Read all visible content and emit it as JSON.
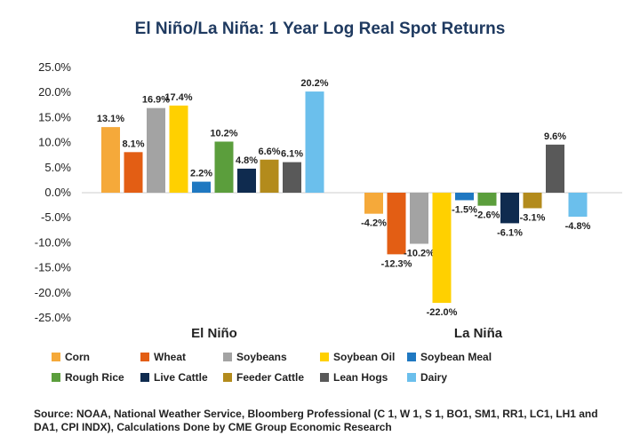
{
  "chart_data": {
    "type": "bar",
    "title": "El Niño/La Niña: 1 Year Log Real Spot Returns",
    "categories": [
      "El Niño",
      "La Niña"
    ],
    "ylim": [
      -25,
      25
    ],
    "yticks": [
      "25.0%",
      "20.0%",
      "15.0%",
      "10.0%",
      "5.0%",
      "0.0%",
      "-5.0%",
      "-10.0%",
      "-15.0%",
      "-20.0%",
      "-25.0%"
    ],
    "ytick_values": [
      25,
      20,
      15,
      10,
      5,
      0,
      -5,
      -10,
      -15,
      -20,
      -25
    ],
    "legend_position": "bottom",
    "series": [
      {
        "name": "Corn",
        "color": "#f5a93a",
        "values": [
          13.1,
          -4.2
        ],
        "labels": [
          "13.1%",
          "-4.2%"
        ]
      },
      {
        "name": "Wheat",
        "color": "#e35e14",
        "values": [
          8.1,
          -12.3
        ],
        "labels": [
          "8.1%",
          "-12.3%"
        ]
      },
      {
        "name": "Soybeans",
        "color": "#a3a3a3",
        "values": [
          16.9,
          -10.2
        ],
        "labels": [
          "16.9%",
          "-10.2%"
        ]
      },
      {
        "name": "Soybean Oil",
        "color": "#ffd000",
        "values": [
          17.4,
          -22.0
        ],
        "labels": [
          "17.4%",
          "-22.0%"
        ]
      },
      {
        "name": "Soybean Meal",
        "color": "#1f78c1",
        "values": [
          2.2,
          -1.5
        ],
        "labels": [
          "2.2%",
          "-1.5%"
        ]
      },
      {
        "name": "Rough Rice",
        "color": "#5b9e3c",
        "values": [
          10.2,
          -2.6
        ],
        "labels": [
          "10.2%",
          "-2.6%"
        ]
      },
      {
        "name": "Live Cattle",
        "color": "#0f2b4f",
        "values": [
          4.8,
          -6.1
        ],
        "labels": [
          "4.8%",
          "-6.1%"
        ]
      },
      {
        "name": "Feeder Cattle",
        "color": "#b38b1c",
        "values": [
          6.6,
          -3.1
        ],
        "labels": [
          "6.6%",
          "-3.1%"
        ]
      },
      {
        "name": "Lean Hogs",
        "color": "#595959",
        "values": [
          6.1,
          9.6
        ],
        "labels": [
          "6.1%",
          "9.6%"
        ]
      },
      {
        "name": "Dairy",
        "color": "#6bbfec",
        "values": [
          20.2,
          -4.8
        ],
        "labels": [
          "20.2%",
          "-4.8%"
        ]
      }
    ]
  },
  "source": "Source: NOAA, National Weather Service, Bloomberg Professional (C 1, W 1, S 1, BO1, SM1, RR1, LC1, LH1 and DA1, CPI INDX), Calculations Done by CME Group Economic Research"
}
